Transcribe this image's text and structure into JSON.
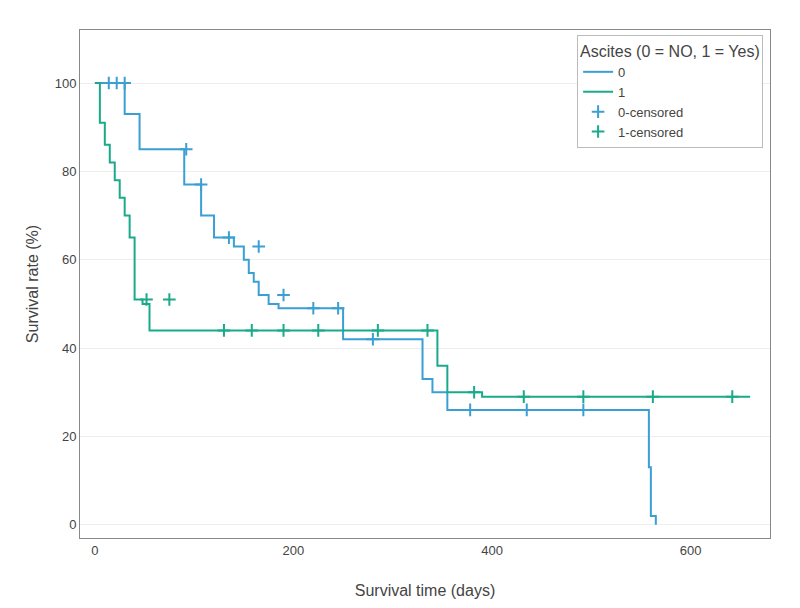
{
  "chart_data": {
    "type": "step",
    "title": "Ascites (0 = NO, 1 = Yes)",
    "xlabel": "Survival time (days)",
    "ylabel": "Survival rate (%)",
    "xlim": [
      -15,
      680
    ],
    "ylim": [
      -3,
      112
    ],
    "xticks": [
      0,
      200,
      400,
      600
    ],
    "yticks": [
      0,
      20,
      40,
      60,
      80,
      100
    ],
    "grid": "y",
    "legend": "upper right",
    "series": [
      {
        "name": "0",
        "type": "step",
        "color": "#3b9fd4",
        "x": [
          0,
          14,
          14,
          30,
          30,
          45,
          45,
          68,
          90,
          90,
          107,
          107,
          120,
          120,
          130,
          140,
          150,
          155,
          160,
          165,
          175,
          185,
          195,
          205,
          215,
          225,
          240,
          250,
          260,
          270,
          280,
          310,
          330,
          340,
          355,
          370,
          375,
          385,
          420,
          450,
          490,
          530,
          558,
          558,
          560,
          560,
          565
        ],
        "values": [
          100,
          100,
          100,
          100,
          93,
          93,
          85,
          85,
          85,
          77,
          77,
          70,
          70,
          65,
          65,
          63,
          60,
          57,
          55,
          52,
          50,
          49,
          49,
          49,
          49,
          49,
          49,
          42,
          42,
          42,
          42,
          42,
          33,
          30,
          26,
          26,
          26,
          26,
          26,
          26,
          26,
          26,
          26,
          13,
          13,
          2,
          0
        ]
      },
      {
        "name": "1",
        "type": "step",
        "color": "#1aaa8a",
        "x": [
          0,
          5,
          5,
          10,
          10,
          15,
          15,
          20,
          20,
          25,
          25,
          30,
          30,
          35,
          35,
          40,
          40,
          48,
          48,
          55,
          55,
          62,
          62,
          70,
          70,
          80,
          80,
          110,
          110,
          120,
          120,
          345,
          345,
          355,
          355,
          390,
          390,
          660
        ],
        "values": [
          100,
          100,
          91,
          91,
          86,
          86,
          82,
          82,
          78,
          78,
          74,
          74,
          70,
          70,
          65,
          65,
          51,
          51,
          50,
          50,
          44,
          44,
          44,
          44,
          44,
          44,
          44,
          44,
          44,
          44,
          44,
          44,
          36,
          36,
          30,
          30,
          29,
          29
        ]
      },
      {
        "name": "0-censored",
        "type": "scatter",
        "marker": "plus",
        "color": "#3b9fd4",
        "x": [
          14,
          22,
          30,
          92,
          107,
          135,
          165,
          190,
          220,
          245,
          280,
          378,
          435,
          492
        ],
        "values": [
          100,
          100,
          100,
          85,
          77,
          65,
          63,
          52,
          49,
          49,
          42,
          26,
          26,
          26
        ]
      },
      {
        "name": "1-censored",
        "type": "scatter",
        "marker": "plus",
        "color": "#1aaa8a",
        "x": [
          52,
          75,
          130,
          158,
          190,
          225,
          285,
          335,
          382,
          432,
          492,
          562,
          642
        ],
        "values": [
          51,
          51,
          44,
          44,
          44,
          44,
          44,
          44,
          30,
          29,
          29,
          29,
          29
        ]
      }
    ]
  }
}
